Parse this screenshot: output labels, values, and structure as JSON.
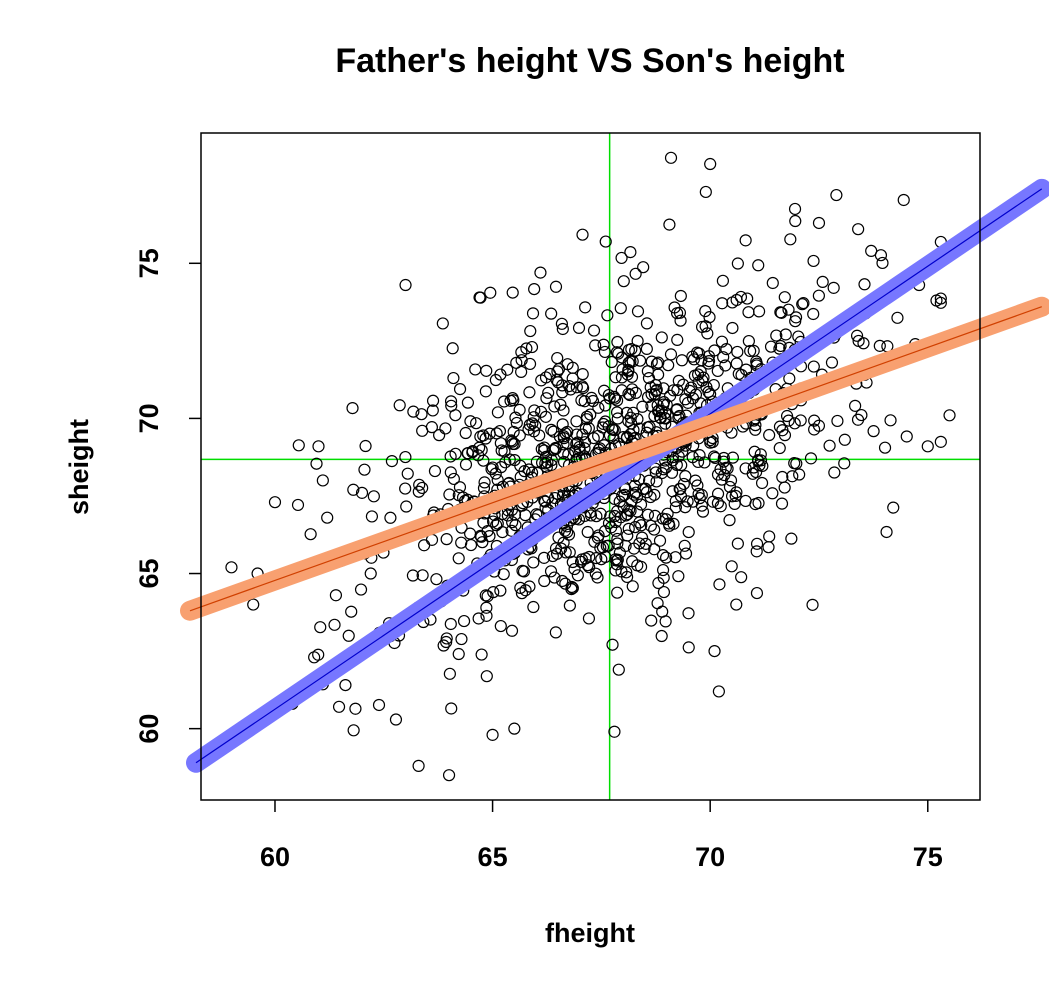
{
  "chart_data": {
    "type": "scatter",
    "title": "Father's height VS Son's height",
    "xlabel": "fheight",
    "ylabel": "sheight",
    "xlim": [
      58.3,
      76.2
    ],
    "ylim": [
      57.7,
      79.2
    ],
    "xticks": [
      60,
      65,
      70,
      75
    ],
    "yticks": [
      60,
      65,
      70,
      75
    ],
    "x_tick_labels": [
      "60",
      "65",
      "70",
      "75"
    ],
    "y_tick_labels": [
      "60",
      "65",
      "70",
      "75"
    ],
    "grid": false,
    "legend": "none",
    "marker": "open-circle",
    "point_color": "#000000",
    "point_count_approx": 1078,
    "mean_lines": {
      "x_mean": 67.69,
      "y_mean": 68.68,
      "color": "#00dd00"
    },
    "fit_lines": [
      {
        "name": "",
        "color": "#7777ff",
        "inner_color": "#0000cc",
        "x": [
          58.3,
          76.7
        ],
        "y": [
          58.9,
          77.4
        ]
      },
      {
        "name": "",
        "color": "#f8a070",
        "inner_color": "#d04000",
        "x": [
          58.3,
          76.7
        ],
        "y": [
          63.8,
          73.6
        ]
      }
    ],
    "notable_points": [
      [
        59.0,
        65.2
      ],
      [
        59.5,
        64.0
      ],
      [
        59.6,
        65.0
      ],
      [
        60.0,
        67.3
      ],
      [
        60.4,
        60.8
      ],
      [
        60.9,
        62.3
      ],
      [
        61.0,
        69.1
      ],
      [
        61.1,
        68.0
      ],
      [
        61.2,
        66.8
      ],
      [
        61.4,
        64.3
      ],
      [
        61.8,
        67.7
      ],
      [
        62.0,
        67.6
      ],
      [
        62.2,
        65.0
      ],
      [
        63.0,
        74.3
      ],
      [
        63.3,
        58.8
      ],
      [
        64.0,
        58.5
      ],
      [
        64.1,
        71.3
      ],
      [
        64.7,
        73.9
      ],
      [
        65.0,
        59.8
      ],
      [
        65.5,
        60.0
      ],
      [
        66.1,
        74.7
      ],
      [
        67.6,
        75.7
      ],
      [
        67.8,
        59.9
      ],
      [
        67.9,
        61.9
      ],
      [
        69.1,
        78.4
      ],
      [
        69.9,
        77.3
      ],
      [
        70.0,
        78.2
      ],
      [
        70.1,
        62.5
      ],
      [
        70.2,
        61.2
      ],
      [
        70.6,
        64.0
      ],
      [
        72.5,
        76.3
      ],
      [
        72.9,
        77.2
      ],
      [
        73.4,
        76.1
      ],
      [
        74.8,
        74.3
      ],
      [
        75.0,
        69.1
      ],
      [
        75.2,
        73.8
      ],
      [
        75.5,
        70.1
      ]
    ]
  }
}
